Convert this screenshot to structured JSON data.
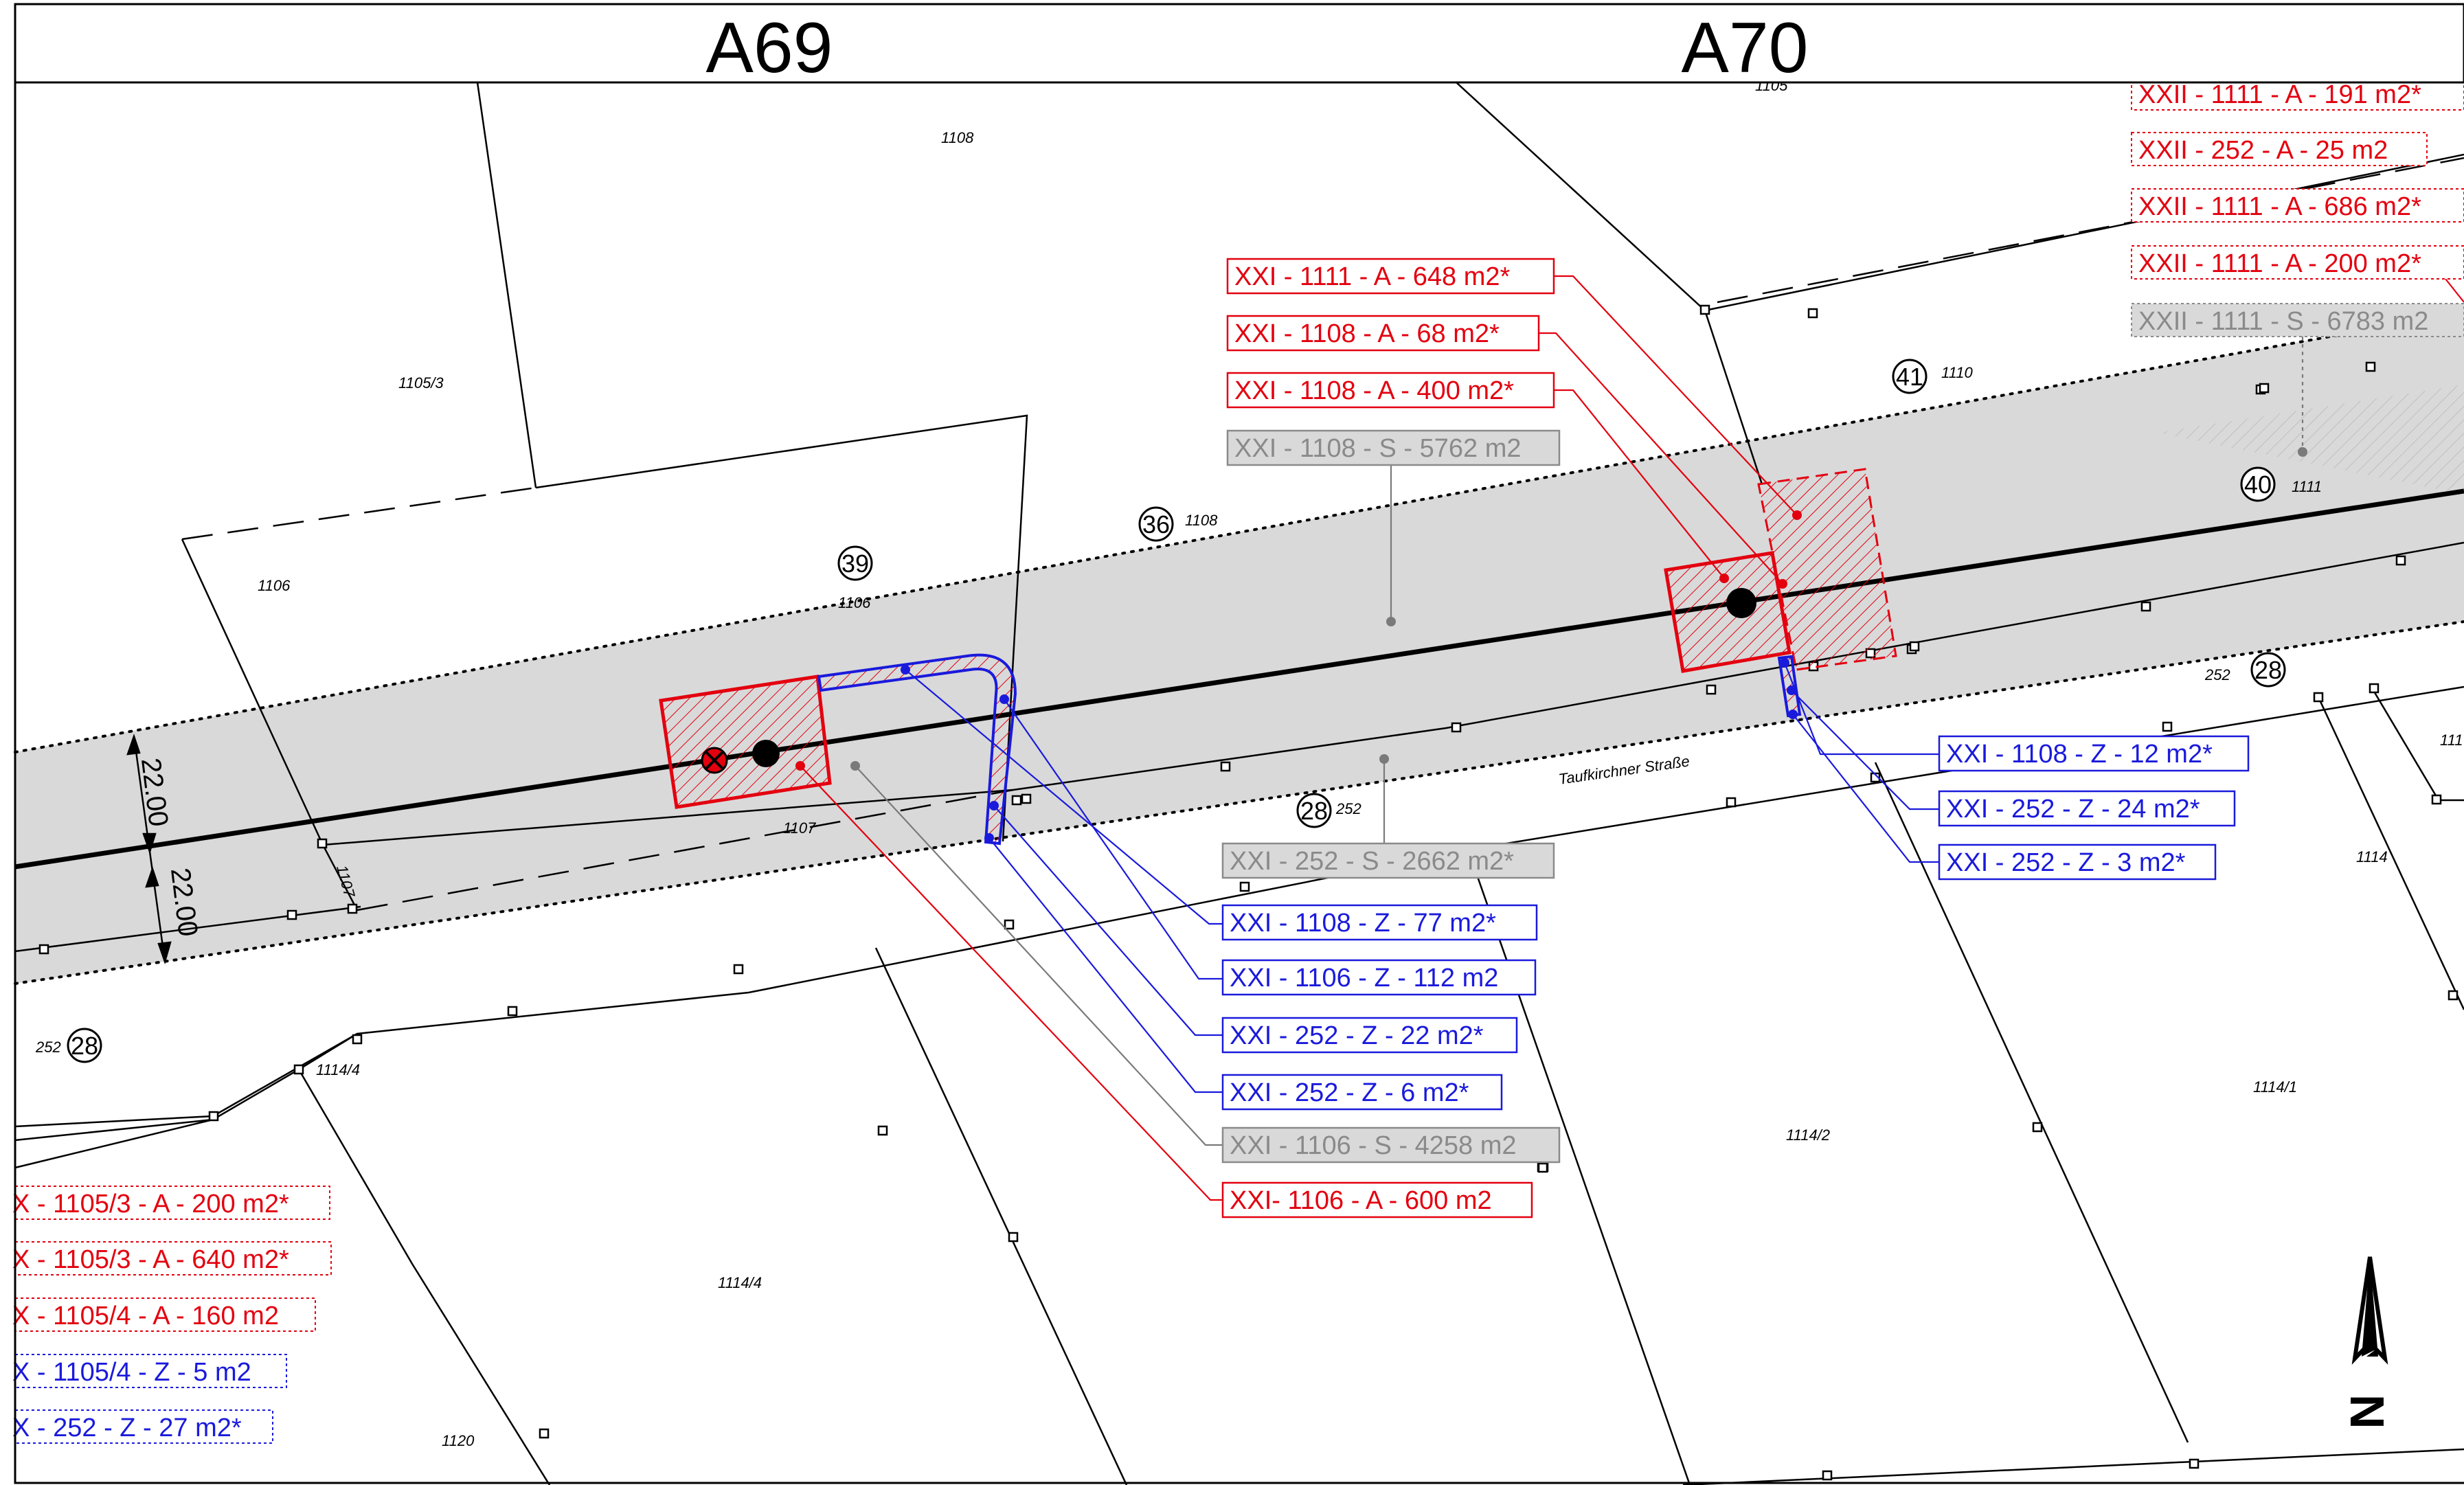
{
  "header": {
    "sheet_left": "A69",
    "sheet_right": "A70"
  },
  "parcels": {
    "p1105": "1105",
    "p1108_top": "1108",
    "p1105_3": "1105/3",
    "p1106_left": "1106",
    "p1106_mid": "1106",
    "p1108_mid": "1108",
    "p1110": "1110",
    "p1111": "1111",
    "p252_right": "252",
    "p1107": "1107",
    "p1107_rot": "1107",
    "p252_mid": "252",
    "p252_left": "252",
    "p1114_4_a": "1114/4",
    "p1114_4_b": "1114/4",
    "p1114_2": "1114/2",
    "p1114_1": "1114/1",
    "p1114": "1114",
    "p111": "111",
    "p1120": "1120",
    "street": "Taufkirchner Straße"
  },
  "circled_numbers": {
    "c39": "39",
    "c36": "36",
    "c41": "41",
    "c40": "40",
    "c28_right": "28",
    "c28_mid": "28",
    "c28_left": "28"
  },
  "dimensions": {
    "upper": "22.00",
    "lower": "22.00"
  },
  "labels_red": {
    "r1": "XXI - 1111 - A - 648 m2*",
    "r2": "XXI - 1108 - A - 68 m2*",
    "r3": "XXI - 1108 - A - 400 m2*",
    "r4": "XXI- 1106 - A - 600 m2"
  },
  "labels_gray": {
    "g1": "XXI - 1108 - S - 5762 m2",
    "g2": "XXI - 252 - S - 2662 m2*",
    "g3": "XXI - 1106 - S - 4258 m2"
  },
  "labels_blue": {
    "b1": "XXI - 1108 - Z - 77 m2*",
    "b2": "XXI - 1106 - Z - 112 m2",
    "b3": "XXI - 252 - Z - 22 m2*",
    "b4": "XXI - 252 - Z - 6 m2*",
    "b5": "XXI - 1108 - Z - 12 m2*",
    "b6": "XXI - 252 - Z - 24 m2*",
    "b7": "XXI - 252 - Z - 3 m2*"
  },
  "labels_right_dashed": {
    "d1": "XXII - 1111 - A - 191 m2*",
    "d2": "XXII - 252 - A - 25 m2",
    "d3": "XXII - 1111 - A - 686 m2*",
    "d4": "XXII - 1111 - A - 200 m2*",
    "d5": "XXII - 1111 - S - 6783 m2"
  },
  "labels_left_dashed": {
    "l1": "X - 1105/3 - A - 200 m2*",
    "l2": "X - 1105/3 - A - 640 m2*",
    "l3": "X - 1105/4 - A - 160 m2",
    "l4": "X - 1105/4 - Z - 5 m2",
    "l5": "X - 252 - Z - 27 m2*"
  },
  "north_arrow": {
    "letter": "N"
  },
  "colors": {
    "red": "#e3000f",
    "blue": "#1a1adc",
    "gray_text": "#8a8a8a",
    "gray_fill": "#d9d9d9",
    "line": "#000000"
  }
}
